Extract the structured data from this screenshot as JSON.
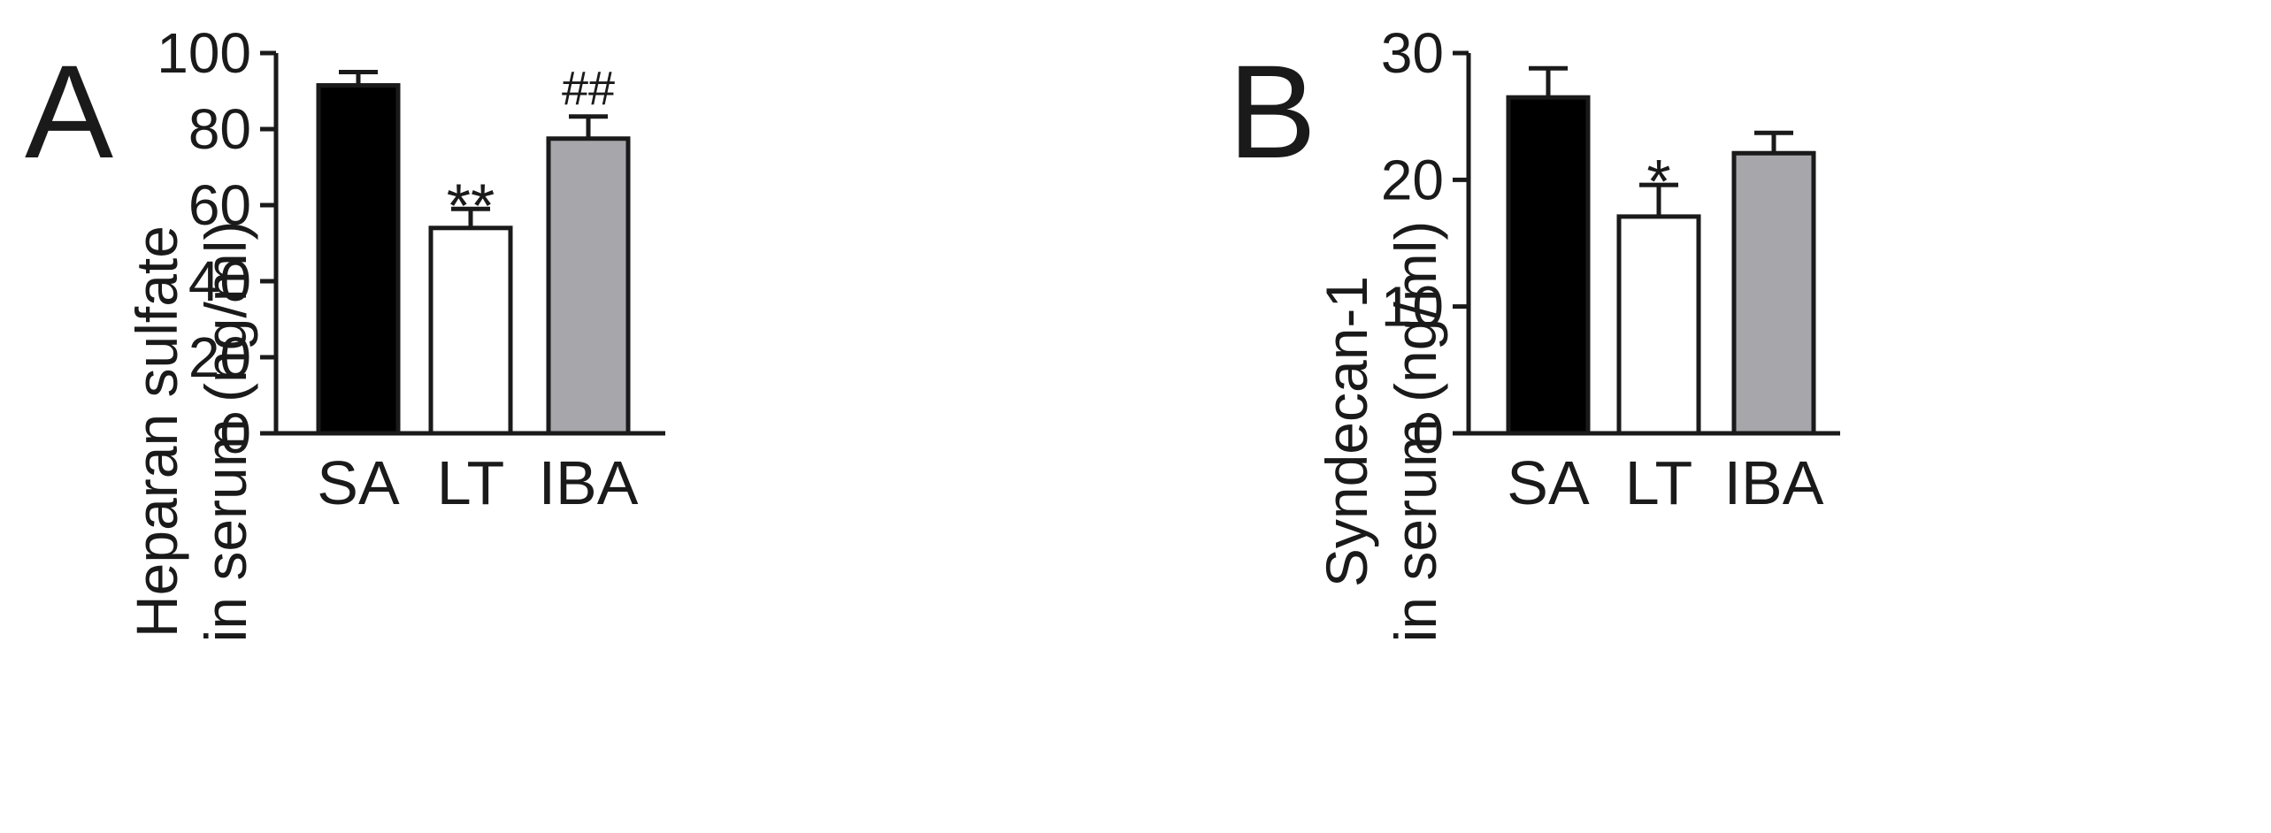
{
  "chart_data": [
    {
      "panel": "A",
      "type": "bar",
      "categories": [
        "SA",
        "LT",
        "IBA"
      ],
      "values": [
        91.5,
        54,
        77.5
      ],
      "errors": [
        3.5,
        5,
        5.8
      ],
      "annotations": [
        "",
        "**",
        "##"
      ],
      "colors": [
        "#000000",
        "#ffffff",
        "#a6a6ab"
      ],
      "ylabel": [
        "Heparan sulfate",
        "in serum (ng/ml)"
      ],
      "ylim": [
        0,
        100
      ],
      "yticks": [
        0,
        20,
        40,
        60,
        80,
        100
      ],
      "grid": false,
      "legend": "none"
    },
    {
      "panel": "B",
      "type": "bar",
      "categories": [
        "SA",
        "LT",
        "IBA"
      ],
      "values": [
        26.5,
        17.1,
        22.1
      ],
      "errors": [
        2.3,
        2.5,
        1.6
      ],
      "annotations": [
        "",
        "*",
        ""
      ],
      "colors": [
        "#000000",
        "#ffffff",
        "#a6a6ab"
      ],
      "ylabel": [
        "Syndecan-1",
        "in serum (ng/ml)"
      ],
      "ylim": [
        0,
        30
      ],
      "yticks": [
        0,
        10,
        20,
        30
      ],
      "grid": false,
      "legend": "none"
    }
  ]
}
